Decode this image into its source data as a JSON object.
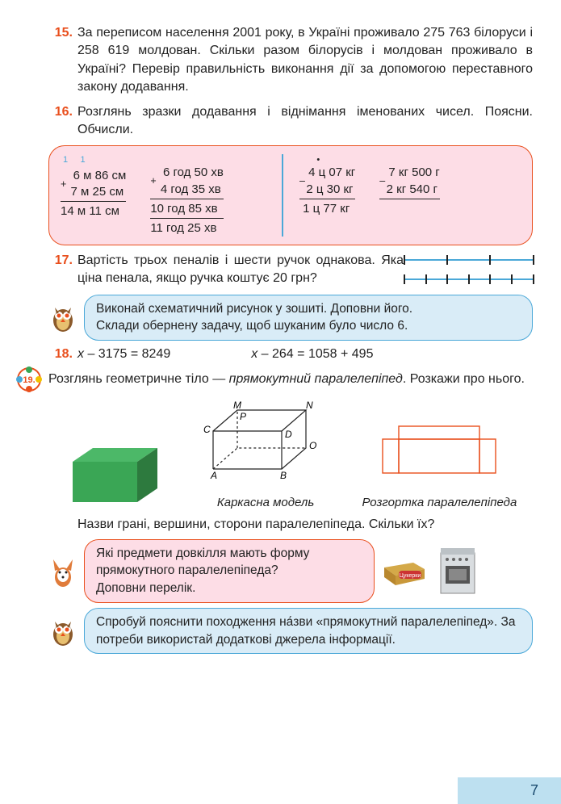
{
  "task15": {
    "num": "15.",
    "text": "За переписом населення 2001 року, в Україні проживало 275 763 білоруси і 258 619 молдован. Скільки разом білорусів і молдован проживало в Україні? Перевір правильність виконання дії за допомогою переставного закону додавання."
  },
  "task16": {
    "num": "16.",
    "text": "Розглянь зразки додавання і віднімання іменованих чисел. Поясни. Обчисли."
  },
  "calc1": {
    "carry": " 1     1",
    "r1": "  6 м 86 см",
    "r2": "  7 м 25 см",
    "r3": "14 м 11 см"
  },
  "calc2": {
    "r1": "  6 год 50 хв",
    "r2": "  4 год 35 хв",
    "r3": "10 год 85 хв",
    "r4": "11 год 25 хв"
  },
  "calc3": {
    "dot": "       •",
    "r1": " 4 ц 07 кг",
    "r2": " 2 ц 30 кг",
    "r3": " 1 ц 77 кг"
  },
  "calc4": {
    "r1": " 7 кг 500 г",
    "r2": " 2 кг 540 г"
  },
  "task17": {
    "num": "17.",
    "text": "Вартість трьох пеналів і шести ручок однакова. Яка ціна пенала, якщо ручка коштує 20 грн?"
  },
  "seg1_ticks": [
    0,
    53,
    106,
    160
  ],
  "seg2_ticks": [
    0,
    27,
    53,
    80,
    106,
    133,
    160
  ],
  "owl1": {
    "line1": "Виконай схематичний рисунок у зошиті. Доповни його.",
    "line2": "Склади обернену задачу, щоб шуканим було число 6."
  },
  "task18": {
    "num": "18.",
    "eq1_var": "x",
    "eq1": " – 3175 = 8249",
    "eq2_var": "x",
    "eq2": " – 264 = 1058 + 495"
  },
  "task19": {
    "num": "19.",
    "text_a": "Розглянь геометричне тіло — ",
    "text_i": "прямокутний паралелепіпед",
    "text_b": ". Розкажи про нього.",
    "text2": "Назви грані, вершини, сторони паралелепіпеда. Скільки їх?"
  },
  "geo_labels": {
    "frame": "Каркасна модель",
    "net": "Розгортка паралелепіпеда",
    "verts": {
      "A": "A",
      "B": "B",
      "C": "C",
      "D": "D",
      "M": "M",
      "N": "N",
      "O": "O",
      "P": "P"
    }
  },
  "fox": {
    "line1": "Які предмети довкілля мають форму прямокутного паралелепіпеда?",
    "line2": "Доповни перелік."
  },
  "candy_label": "Цукерки",
  "owl2": {
    "text": "Спробуй пояснити походження на́зви «прямокутний паралелепіпед». За потреби використай додаткові джерела інформації."
  },
  "page_num": "7",
  "colors": {
    "accent": "#e94f1d",
    "blue": "#4aa8d8",
    "pink_bg": "#fddde6",
    "blue_bg": "#d9ecf7",
    "green1": "#3aa655",
    "green2": "#2d7a3e"
  }
}
